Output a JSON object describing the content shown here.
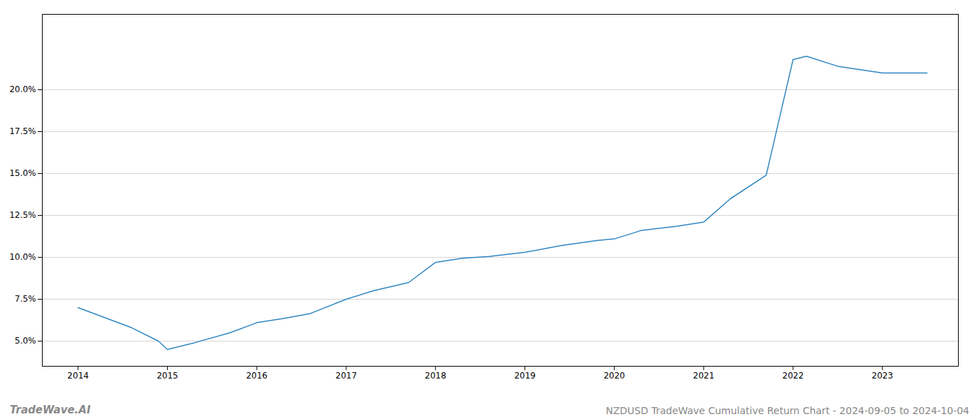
{
  "chart_data": {
    "type": "line",
    "title": "NZDUSD TradeWave Cumulative Return Chart - 2024-09-05 to 2024-10-04",
    "annotations": [
      "TradeWave.AI"
    ],
    "x": [
      2014.0,
      2014.6,
      2014.9,
      2015.0,
      2015.3,
      2015.7,
      2016.0,
      2016.3,
      2016.6,
      2017.0,
      2017.3,
      2017.7,
      2018.0,
      2018.3,
      2018.6,
      2019.0,
      2019.4,
      2019.8,
      2020.0,
      2020.3,
      2020.7,
      2021.0,
      2021.3,
      2021.7,
      2022.0,
      2022.15,
      2022.5,
      2023.0,
      2023.5
    ],
    "values": [
      7.0,
      5.8,
      5.0,
      4.5,
      4.9,
      5.5,
      6.1,
      6.35,
      6.65,
      7.5,
      8.0,
      8.5,
      9.7,
      9.95,
      10.05,
      10.3,
      10.7,
      11.0,
      11.1,
      11.6,
      11.85,
      12.1,
      13.5,
      14.9,
      21.8,
      22.0,
      21.4,
      21.0,
      21.0
    ],
    "color": "#2e86c1",
    "xlim": [
      2013.6,
      2023.85
    ],
    "ylim": [
      3.5,
      24.5
    ],
    "xticks": [
      2014,
      2015,
      2016,
      2017,
      2018,
      2019,
      2020,
      2021,
      2022,
      2023
    ],
    "yticks": [
      {
        "value": 5.0,
        "label": "5.0%"
      },
      {
        "value": 7.5,
        "label": "7.5%"
      },
      {
        "value": 10.0,
        "label": "10.0%"
      },
      {
        "value": 12.5,
        "label": "12.5%"
      },
      {
        "value": 15.0,
        "label": "15.0%"
      },
      {
        "value": 17.5,
        "label": "17.5%"
      },
      {
        "value": 20.0,
        "label": "20.0%"
      }
    ],
    "grid": "y"
  }
}
